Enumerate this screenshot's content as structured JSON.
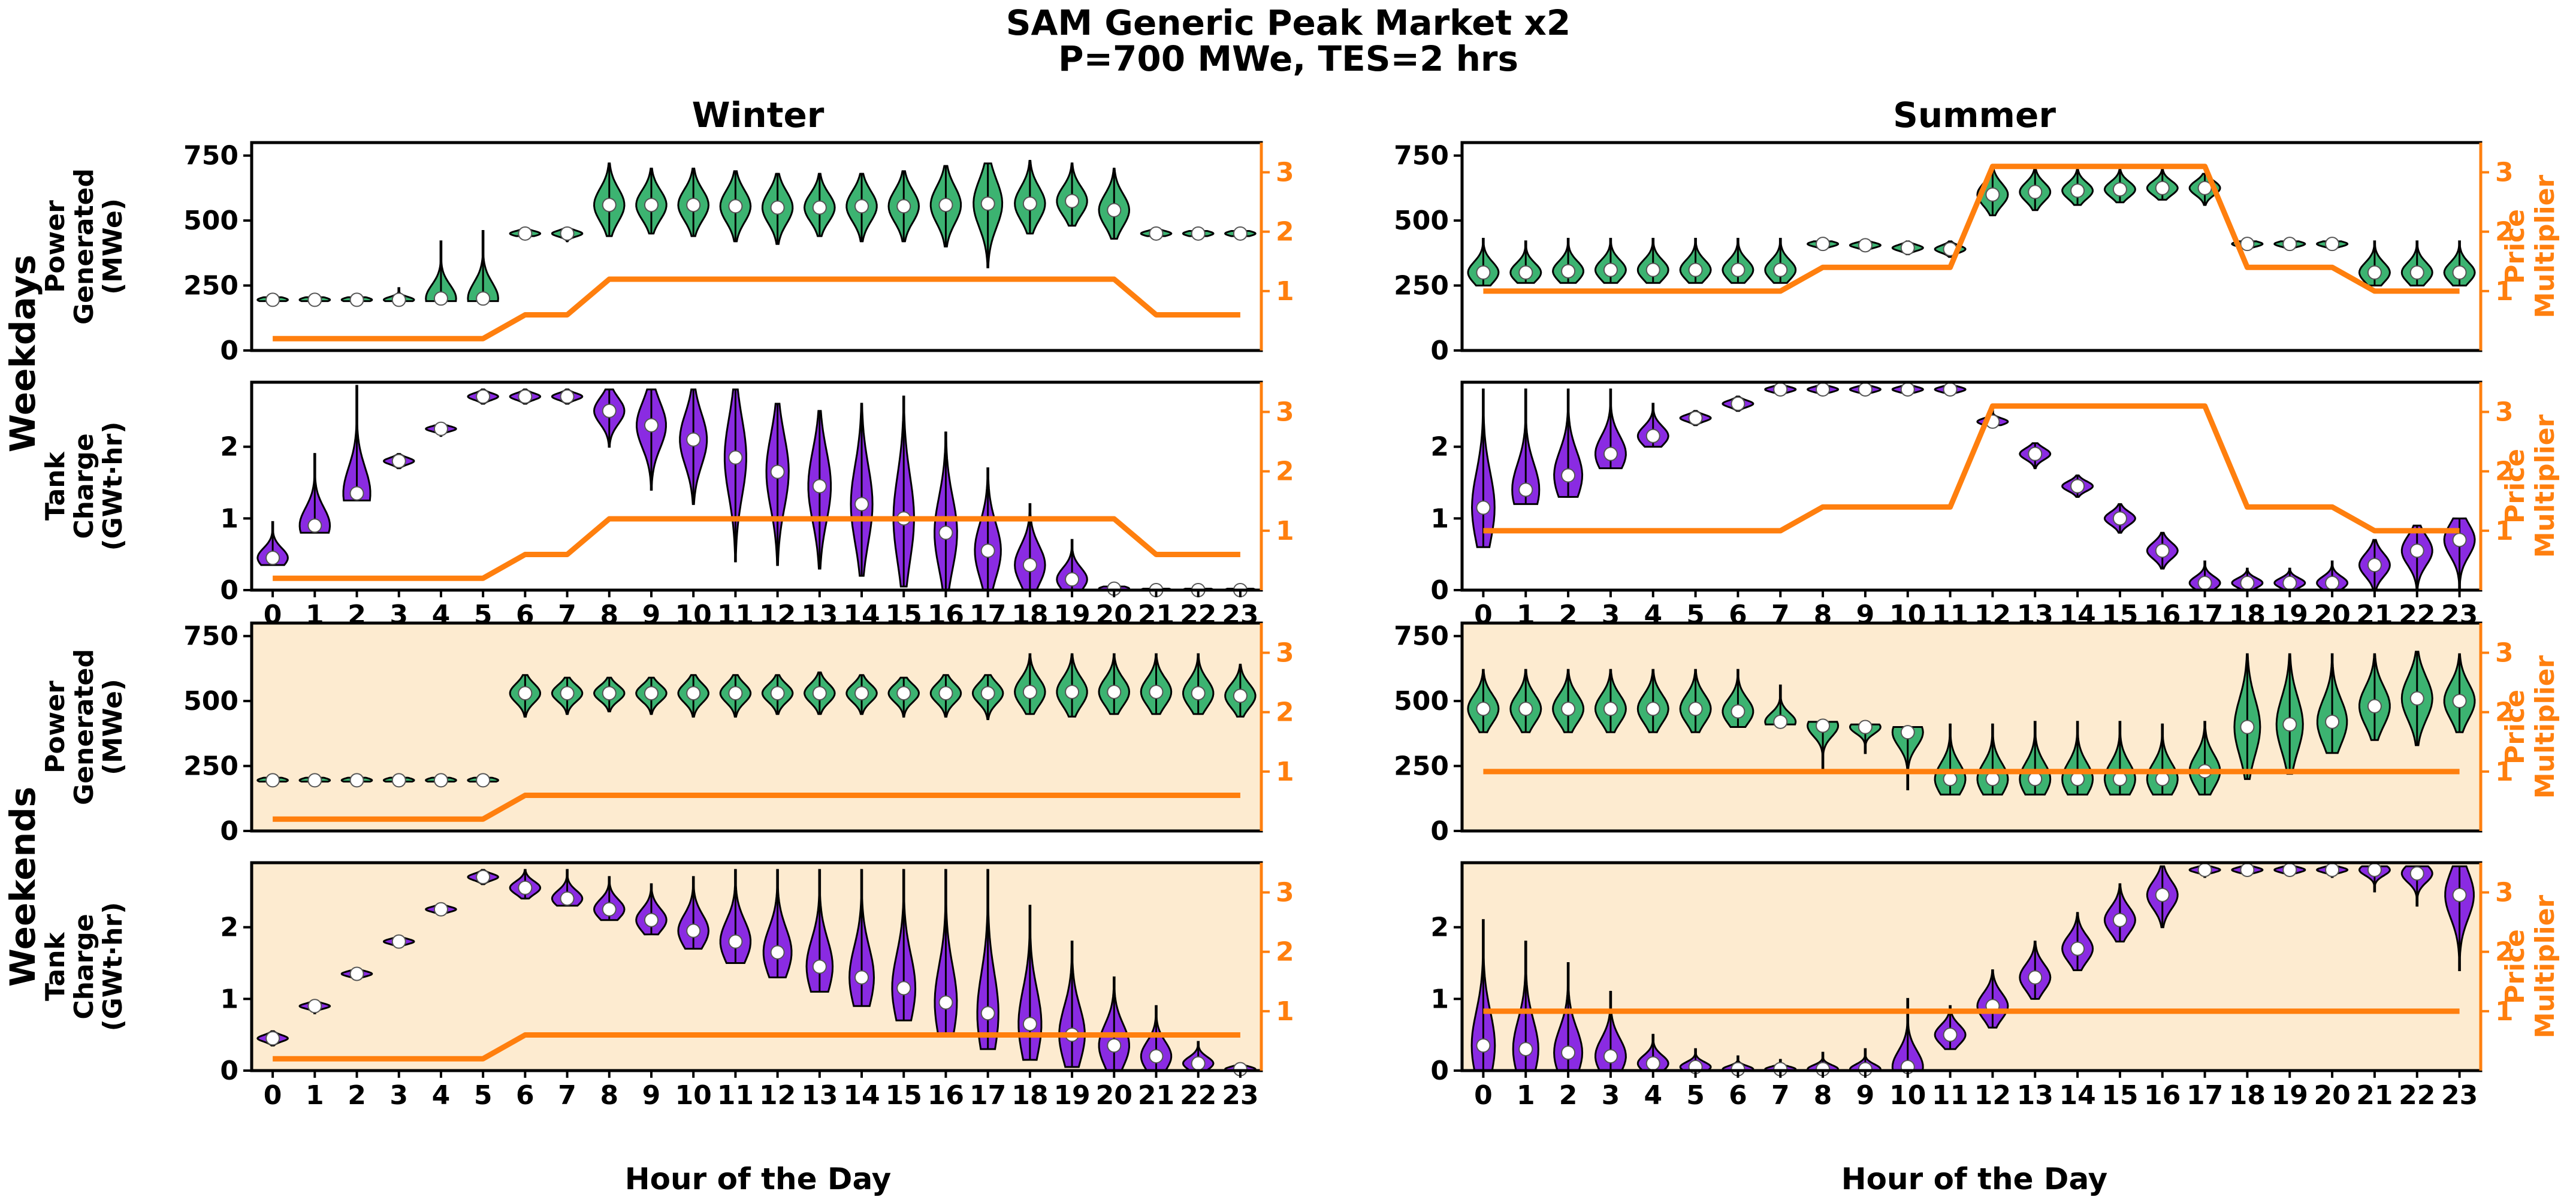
{
  "figure": {
    "title_line1": "SAM Generic Peak Market x2",
    "title_line2": "P=700 MWe, TES=2 hrs",
    "col_titles": [
      "Winter",
      "Summer"
    ],
    "row_titles": [
      "Weekdays",
      "Weekends"
    ],
    "power_ylabel": [
      "Power",
      "Generated",
      "(MWe)"
    ],
    "charge_ylabel": [
      "Tank",
      "Charge",
      "(GWt·hr)"
    ],
    "price_ylabel": [
      "Price",
      "Multiplier"
    ],
    "xlabel": "Hour of the Day"
  },
  "colors": {
    "power_violin": "#3cb371",
    "charge_violin": "#8a2be2",
    "price_line": "#ff7f0e",
    "weekend_bg": "#fdebd0",
    "axis": "#000000",
    "median_dot": "#ffffff"
  },
  "chart_data": [
    {
      "type": "violin",
      "panel": "winter-weekday-power",
      "x": [
        0,
        1,
        2,
        3,
        4,
        5,
        6,
        7,
        8,
        9,
        10,
        11,
        12,
        13,
        14,
        15,
        16,
        17,
        18,
        19,
        20,
        21,
        22,
        23
      ],
      "median": [
        195,
        195,
        195,
        195,
        200,
        200,
        450,
        450,
        560,
        560,
        560,
        555,
        550,
        550,
        555,
        555,
        560,
        565,
        565,
        575,
        540,
        450,
        450,
        450
      ],
      "min": [
        190,
        190,
        190,
        190,
        190,
        190,
        440,
        420,
        440,
        450,
        440,
        420,
        410,
        440,
        420,
        420,
        400,
        320,
        450,
        480,
        430,
        440,
        440,
        440
      ],
      "max": [
        205,
        205,
        205,
        240,
        420,
        460,
        470,
        470,
        720,
        700,
        700,
        690,
        680,
        680,
        680,
        690,
        710,
        720,
        730,
        720,
        700,
        470,
        460,
        460
      ],
      "price_multiplier": [
        0.2,
        0.2,
        0.2,
        0.2,
        0.2,
        0.2,
        0.6,
        0.6,
        1.2,
        1.2,
        1.2,
        1.2,
        1.2,
        1.2,
        1.2,
        1.2,
        1.2,
        1.2,
        1.2,
        1.2,
        1.2,
        0.6,
        0.6,
        0.6
      ],
      "ylim": [
        0,
        800
      ],
      "yticks": [
        0,
        250,
        500,
        750
      ],
      "y2lim": [
        0,
        3.5
      ],
      "y2ticks": [
        1,
        2,
        3
      ]
    },
    {
      "type": "violin",
      "panel": "winter-weekday-charge",
      "x": [
        0,
        1,
        2,
        3,
        4,
        5,
        6,
        7,
        8,
        9,
        10,
        11,
        12,
        13,
        14,
        15,
        16,
        17,
        18,
        19,
        20,
        21,
        22,
        23
      ],
      "median": [
        0.45,
        0.9,
        1.35,
        1.8,
        2.25,
        2.7,
        2.7,
        2.7,
        2.5,
        2.3,
        2.1,
        1.85,
        1.65,
        1.45,
        1.2,
        1.0,
        0.8,
        0.55,
        0.35,
        0.15,
        0.02,
        0.0,
        0.0,
        0.0
      ],
      "min": [
        0.35,
        0.8,
        1.25,
        1.7,
        2.15,
        2.6,
        2.6,
        2.6,
        2.0,
        1.4,
        1.2,
        0.4,
        0.35,
        0.3,
        0.2,
        0.05,
        0.0,
        0.0,
        0.0,
        0.0,
        0.0,
        0.0,
        0.0,
        0.0
      ],
      "max": [
        0.95,
        1.9,
        2.85,
        1.9,
        2.3,
        2.8,
        2.8,
        2.8,
        2.8,
        2.8,
        2.8,
        2.8,
        2.6,
        2.5,
        2.6,
        2.7,
        2.2,
        1.7,
        1.2,
        0.7,
        0.05,
        0.02,
        0.02,
        0.02
      ],
      "price_multiplier": [
        0.2,
        0.2,
        0.2,
        0.2,
        0.2,
        0.2,
        0.6,
        0.6,
        1.2,
        1.2,
        1.2,
        1.2,
        1.2,
        1.2,
        1.2,
        1.2,
        1.2,
        1.2,
        1.2,
        1.2,
        1.2,
        0.6,
        0.6,
        0.6
      ],
      "ylim": [
        0,
        2.9
      ],
      "yticks": [
        0,
        1,
        2
      ],
      "y2lim": [
        0,
        3.5
      ],
      "y2ticks": [
        1,
        2,
        3
      ]
    },
    {
      "type": "violin",
      "panel": "winter-weekend-power",
      "x": [
        0,
        1,
        2,
        3,
        4,
        5,
        6,
        7,
        8,
        9,
        10,
        11,
        12,
        13,
        14,
        15,
        16,
        17,
        18,
        19,
        20,
        21,
        22,
        23
      ],
      "median": [
        195,
        195,
        195,
        195,
        195,
        195,
        530,
        530,
        530,
        530,
        530,
        530,
        530,
        530,
        530,
        530,
        530,
        530,
        535,
        535,
        535,
        535,
        530,
        520
      ],
      "min": [
        190,
        190,
        190,
        190,
        190,
        190,
        440,
        450,
        460,
        450,
        440,
        440,
        450,
        450,
        450,
        440,
        440,
        430,
        450,
        440,
        450,
        450,
        450,
        440
      ],
      "max": [
        205,
        205,
        205,
        205,
        205,
        205,
        600,
        590,
        590,
        590,
        600,
        600,
        600,
        610,
        600,
        590,
        600,
        600,
        680,
        680,
        680,
        680,
        680,
        640
      ],
      "price_multiplier": [
        0.2,
        0.2,
        0.2,
        0.2,
        0.2,
        0.2,
        0.6,
        0.6,
        0.6,
        0.6,
        0.6,
        0.6,
        0.6,
        0.6,
        0.6,
        0.6,
        0.6,
        0.6,
        0.6,
        0.6,
        0.6,
        0.6,
        0.6,
        0.6
      ],
      "ylim": [
        0,
        800
      ],
      "yticks": [
        0,
        250,
        500,
        750
      ],
      "y2lim": [
        0,
        3.5
      ],
      "y2ticks": [
        1,
        2,
        3
      ]
    },
    {
      "type": "violin",
      "panel": "winter-weekend-charge",
      "x": [
        0,
        1,
        2,
        3,
        4,
        5,
        6,
        7,
        8,
        9,
        10,
        11,
        12,
        13,
        14,
        15,
        16,
        17,
        18,
        19,
        20,
        21,
        22,
        23
      ],
      "median": [
        0.45,
        0.9,
        1.35,
        1.8,
        2.25,
        2.7,
        2.55,
        2.4,
        2.25,
        2.1,
        1.95,
        1.8,
        1.65,
        1.45,
        1.3,
        1.15,
        0.95,
        0.8,
        0.65,
        0.5,
        0.35,
        0.2,
        0.1,
        0.02
      ],
      "min": [
        0.35,
        0.8,
        1.3,
        1.75,
        2.2,
        2.6,
        2.4,
        2.3,
        2.1,
        1.9,
        1.7,
        1.5,
        1.3,
        1.1,
        0.9,
        0.7,
        0.5,
        0.3,
        0.15,
        0.05,
        0.0,
        0.0,
        0.0,
        0.0
      ],
      "max": [
        0.55,
        0.95,
        1.4,
        1.85,
        2.3,
        2.8,
        2.8,
        2.8,
        2.7,
        2.6,
        2.7,
        2.8,
        2.8,
        2.8,
        2.8,
        2.8,
        2.8,
        2.8,
        2.3,
        1.8,
        1.3,
        0.9,
        0.4,
        0.1
      ],
      "price_multiplier": [
        0.2,
        0.2,
        0.2,
        0.2,
        0.2,
        0.2,
        0.6,
        0.6,
        0.6,
        0.6,
        0.6,
        0.6,
        0.6,
        0.6,
        0.6,
        0.6,
        0.6,
        0.6,
        0.6,
        0.6,
        0.6,
        0.6,
        0.6,
        0.6
      ],
      "ylim": [
        0,
        2.9
      ],
      "yticks": [
        0,
        1,
        2
      ],
      "y2lim": [
        0,
        3.5
      ],
      "y2ticks": [
        1,
        2,
        3
      ]
    },
    {
      "type": "violin",
      "panel": "summer-weekday-power",
      "x": [
        0,
        1,
        2,
        3,
        4,
        5,
        6,
        7,
        8,
        9,
        10,
        11,
        12,
        13,
        14,
        15,
        16,
        17,
        18,
        19,
        20,
        21,
        22,
        23
      ],
      "median": [
        300,
        300,
        305,
        310,
        310,
        310,
        310,
        310,
        410,
        405,
        395,
        390,
        600,
        610,
        615,
        620,
        625,
        625,
        410,
        410,
        410,
        300,
        300,
        300
      ],
      "min": [
        250,
        260,
        260,
        260,
        260,
        260,
        260,
        260,
        390,
        390,
        370,
        360,
        520,
        540,
        560,
        570,
        580,
        560,
        390,
        390,
        390,
        250,
        250,
        250
      ],
      "max": [
        430,
        420,
        430,
        430,
        430,
        430,
        430,
        430,
        420,
        420,
        420,
        420,
        710,
        700,
        700,
        700,
        700,
        680,
        420,
        420,
        420,
        420,
        420,
        420
      ],
      "price_multiplier": [
        1,
        1,
        1,
        1,
        1,
        1,
        1,
        1,
        1.4,
        1.4,
        1.4,
        1.4,
        3.1,
        3.1,
        3.1,
        3.1,
        3.1,
        3.1,
        1.4,
        1.4,
        1.4,
        1,
        1,
        1
      ],
      "ylim": [
        0,
        800
      ],
      "yticks": [
        0,
        250,
        500,
        750
      ],
      "y2lim": [
        0,
        3.5
      ],
      "y2ticks": [
        1,
        2,
        3
      ]
    },
    {
      "type": "violin",
      "panel": "summer-weekday-charge",
      "x": [
        0,
        1,
        2,
        3,
        4,
        5,
        6,
        7,
        8,
        9,
        10,
        11,
        12,
        13,
        14,
        15,
        16,
        17,
        18,
        19,
        20,
        21,
        22,
        23
      ],
      "median": [
        1.15,
        1.4,
        1.6,
        1.9,
        2.15,
        2.4,
        2.6,
        2.8,
        2.8,
        2.8,
        2.8,
        2.8,
        2.35,
        1.9,
        1.45,
        1.0,
        0.55,
        0.1,
        0.1,
        0.1,
        0.1,
        0.35,
        0.55,
        0.7
      ],
      "min": [
        0.6,
        1.2,
        1.3,
        1.7,
        2.0,
        2.3,
        2.5,
        2.75,
        2.75,
        2.75,
        2.75,
        2.75,
        2.3,
        1.7,
        1.3,
        0.8,
        0.3,
        0.0,
        0.0,
        0.0,
        0.0,
        0.0,
        0.0,
        0.0
      ],
      "max": [
        2.8,
        2.8,
        2.8,
        2.8,
        2.6,
        2.5,
        2.7,
        2.85,
        2.85,
        2.85,
        2.85,
        2.85,
        2.5,
        2.05,
        1.6,
        1.2,
        0.8,
        0.4,
        0.3,
        0.3,
        0.4,
        0.7,
        0.9,
        1.0
      ],
      "price_multiplier": [
        1,
        1,
        1,
        1,
        1,
        1,
        1,
        1,
        1.4,
        1.4,
        1.4,
        1.4,
        3.1,
        3.1,
        3.1,
        3.1,
        3.1,
        3.1,
        1.4,
        1.4,
        1.4,
        1,
        1,
        1
      ],
      "ylim": [
        0,
        2.9
      ],
      "yticks": [
        0,
        1,
        2
      ],
      "y2lim": [
        0,
        3.5
      ],
      "y2ticks": [
        1,
        2,
        3
      ]
    },
    {
      "type": "violin",
      "panel": "summer-weekend-power",
      "x": [
        0,
        1,
        2,
        3,
        4,
        5,
        6,
        7,
        8,
        9,
        10,
        11,
        12,
        13,
        14,
        15,
        16,
        17,
        18,
        19,
        20,
        21,
        22,
        23
      ],
      "median": [
        470,
        470,
        470,
        470,
        470,
        470,
        460,
        420,
        405,
        400,
        380,
        200,
        200,
        200,
        200,
        200,
        200,
        230,
        400,
        410,
        420,
        480,
        510,
        500
      ],
      "min": [
        380,
        380,
        380,
        380,
        380,
        380,
        400,
        410,
        240,
        300,
        160,
        140,
        140,
        140,
        140,
        140,
        140,
        140,
        200,
        220,
        300,
        350,
        330,
        380
      ],
      "max": [
        620,
        620,
        620,
        620,
        620,
        620,
        620,
        560,
        420,
        410,
        400,
        410,
        410,
        420,
        420,
        420,
        410,
        420,
        680,
        680,
        680,
        680,
        690,
        680
      ],
      "price_multiplier": [
        1,
        1,
        1,
        1,
        1,
        1,
        1,
        1,
        1,
        1,
        1,
        1,
        1,
        1,
        1,
        1,
        1,
        1,
        1,
        1,
        1,
        1,
        1,
        1
      ],
      "ylim": [
        0,
        800
      ],
      "yticks": [
        0,
        250,
        500,
        750
      ],
      "y2lim": [
        0,
        3.5
      ],
      "y2ticks": [
        1,
        2,
        3
      ]
    },
    {
      "type": "violin",
      "panel": "summer-weekend-charge",
      "x": [
        0,
        1,
        2,
        3,
        4,
        5,
        6,
        7,
        8,
        9,
        10,
        11,
        12,
        13,
        14,
        15,
        16,
        17,
        18,
        19,
        20,
        21,
        22,
        23
      ],
      "median": [
        0.35,
        0.3,
        0.25,
        0.2,
        0.1,
        0.05,
        0.02,
        0.02,
        0.02,
        0.02,
        0.05,
        0.5,
        0.9,
        1.3,
        1.7,
        2.1,
        2.45,
        2.8,
        2.8,
        2.8,
        2.8,
        2.8,
        2.75,
        2.45
      ],
      "min": [
        0.0,
        0.0,
        0.0,
        0.0,
        0.0,
        0.0,
        0.0,
        0.0,
        0.0,
        0.0,
        0.0,
        0.3,
        0.6,
        1.0,
        1.4,
        1.8,
        2.0,
        2.7,
        2.75,
        2.75,
        2.7,
        2.5,
        2.3,
        1.4
      ],
      "max": [
        2.1,
        1.8,
        1.5,
        1.1,
        0.5,
        0.3,
        0.2,
        0.15,
        0.25,
        0.3,
        1.0,
        0.9,
        1.4,
        1.8,
        2.2,
        2.6,
        2.85,
        2.85,
        2.85,
        2.85,
        2.85,
        2.85,
        2.85,
        2.85
      ],
      "price_multiplier": [
        1,
        1,
        1,
        1,
        1,
        1,
        1,
        1,
        1,
        1,
        1,
        1,
        1,
        1,
        1,
        1,
        1,
        1,
        1,
        1,
        1,
        1,
        1,
        1
      ],
      "ylim": [
        0,
        2.9
      ],
      "yticks": [
        0,
        1,
        2
      ],
      "y2lim": [
        0,
        3.5
      ],
      "y2ticks": [
        1,
        2,
        3
      ]
    }
  ]
}
